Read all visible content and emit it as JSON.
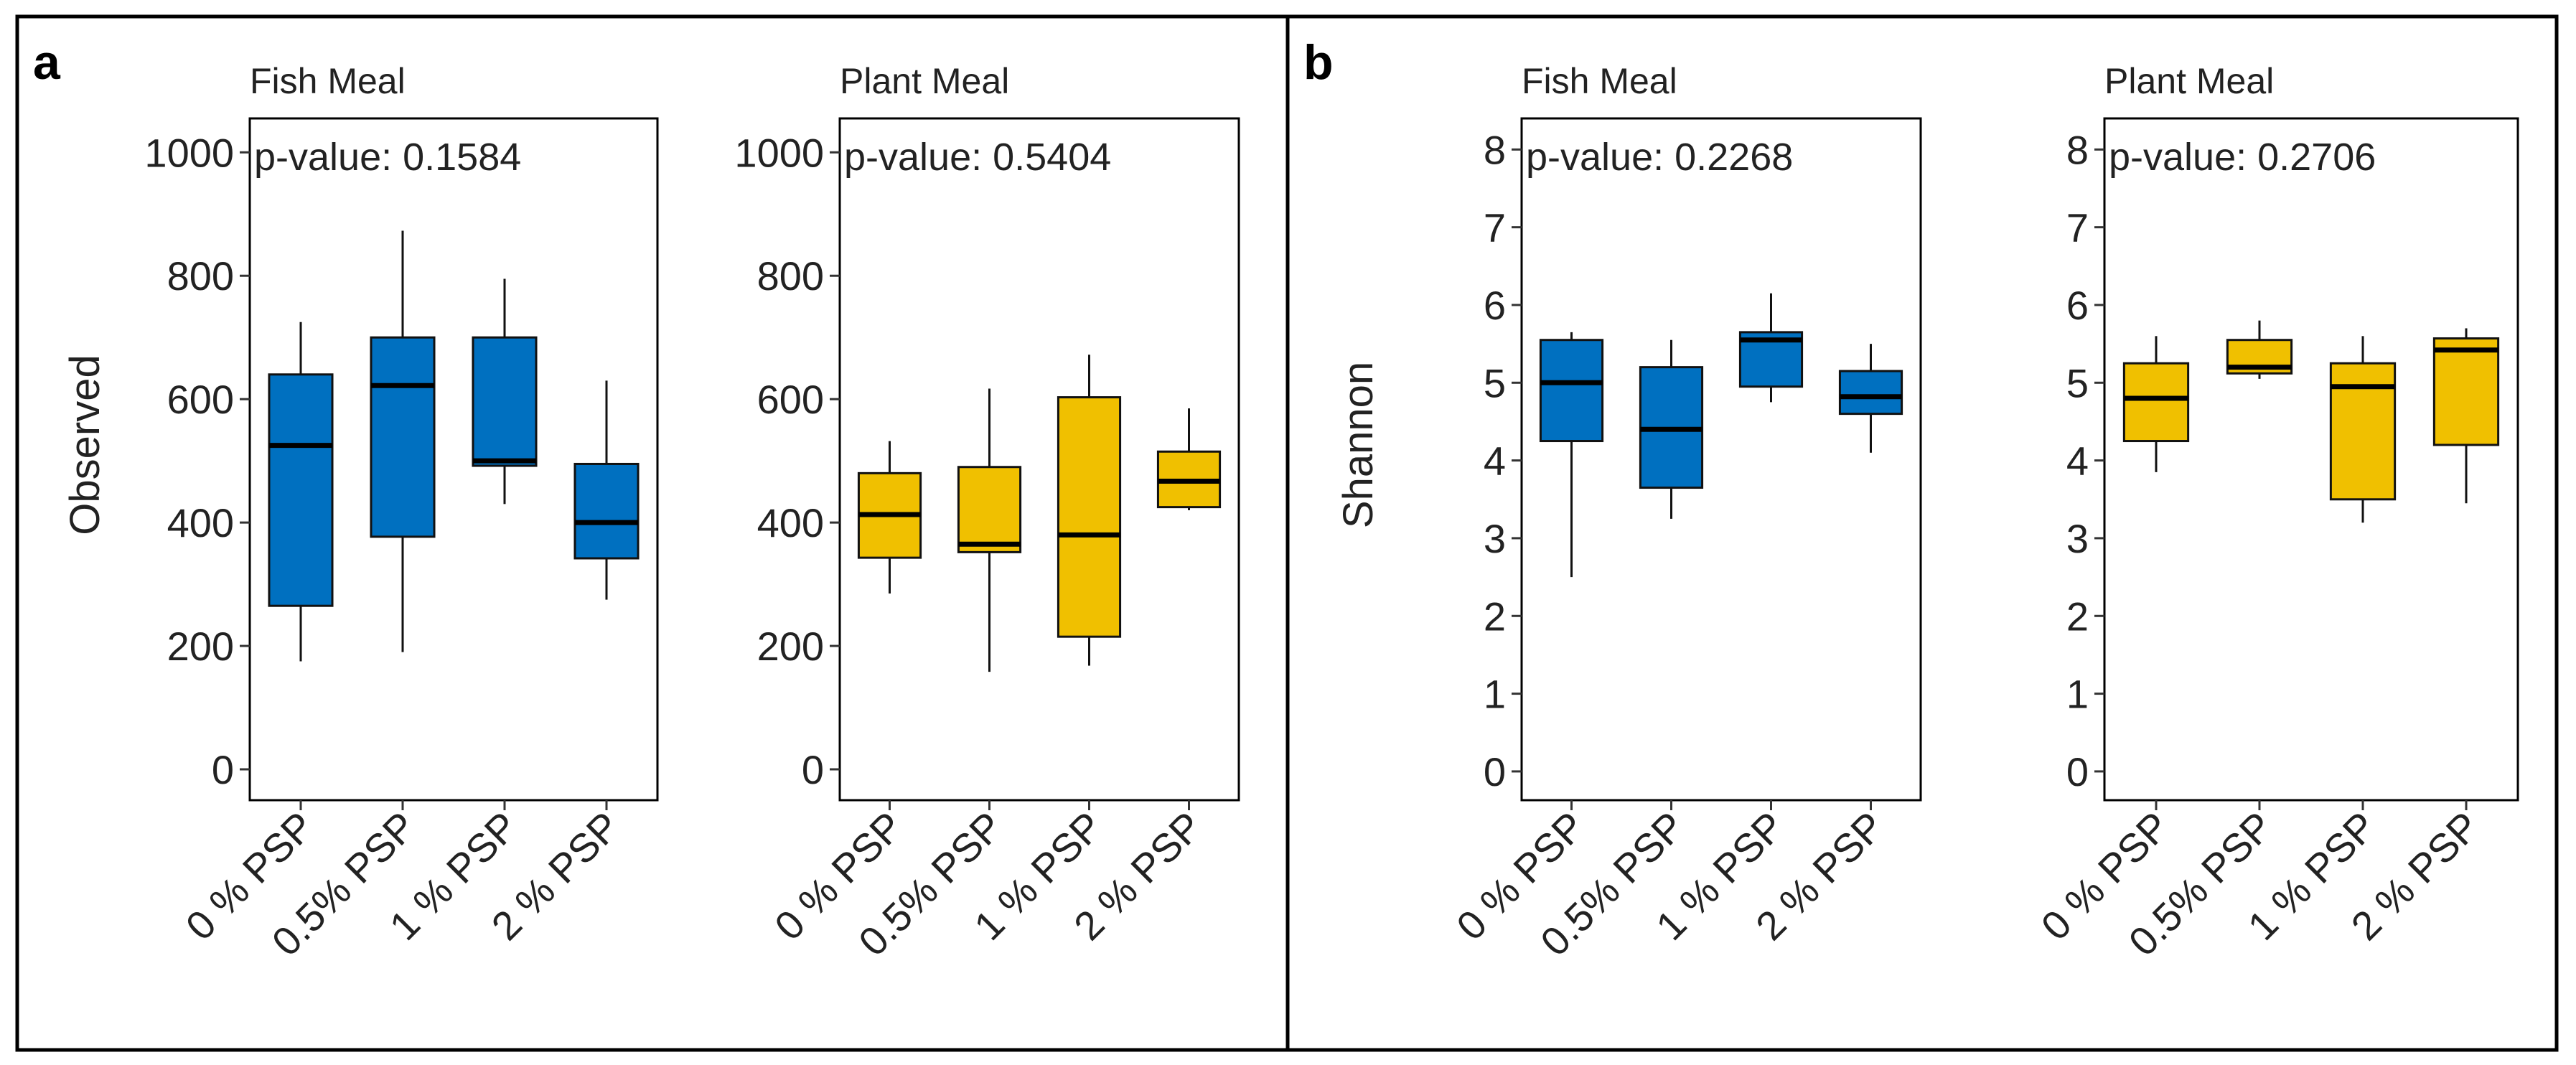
{
  "figure": {
    "panels": [
      {
        "letter": "a",
        "ylabel": "Observed"
      },
      {
        "letter": "b",
        "ylabel": "Shannon"
      }
    ]
  },
  "colors": {
    "fish": "#0070c0",
    "plant": "#f0c000",
    "stroke": "#111111"
  },
  "chart_data": [
    {
      "type": "box",
      "panel": "a",
      "title": "Fish Meal",
      "annotation": "p-value: 0.1584",
      "ylabel": "Observed",
      "ylim": [
        -50,
        1055
      ],
      "yticks": [
        0,
        200,
        400,
        600,
        800,
        1000
      ],
      "categories": [
        "0 % PSP",
        "0.5% PSP",
        "1 % PSP",
        "2 % PSP"
      ],
      "fill": "fish",
      "boxes": [
        {
          "min": 175,
          "q1": 265,
          "median": 525,
          "q3": 640,
          "max": 725
        },
        {
          "min": 190,
          "q1": 377,
          "median": 622,
          "q3": 700,
          "max": 873
        },
        {
          "min": 430,
          "q1": 492,
          "median": 500,
          "q3": 700,
          "max": 795
        },
        {
          "min": 275,
          "q1": 342,
          "median": 400,
          "q3": 495,
          "max": 630
        }
      ]
    },
    {
      "type": "box",
      "panel": "a",
      "title": "Plant Meal",
      "annotation": "p-value: 0.5404",
      "ylabel": "",
      "ylim": [
        -50,
        1055
      ],
      "yticks": [
        0,
        200,
        400,
        600,
        800,
        1000
      ],
      "categories": [
        "0 % PSP",
        "0.5% PSP",
        "1 % PSP",
        "2 % PSP"
      ],
      "fill": "plant",
      "boxes": [
        {
          "min": 285,
          "q1": 343,
          "median": 413,
          "q3": 480,
          "max": 532
        },
        {
          "min": 158,
          "q1": 352,
          "median": 365,
          "q3": 490,
          "max": 617
        },
        {
          "min": 168,
          "q1": 215,
          "median": 380,
          "q3": 603,
          "max": 672
        },
        {
          "min": 420,
          "q1": 425,
          "median": 467,
          "q3": 515,
          "max": 585
        }
      ]
    },
    {
      "type": "box",
      "panel": "b",
      "title": "Fish Meal",
      "annotation": "p-value: 0.2268",
      "ylabel": "Shannon",
      "ylim": [
        -0.37,
        8.4
      ],
      "yticks": [
        0,
        1,
        2,
        3,
        4,
        5,
        6,
        7,
        8
      ],
      "categories": [
        "0 % PSP",
        "0.5% PSP",
        "1 % PSP",
        "2 % PSP"
      ],
      "fill": "fish",
      "boxes": [
        {
          "min": 2.5,
          "q1": 4.25,
          "median": 5.0,
          "q3": 5.55,
          "max": 5.65
        },
        {
          "min": 3.25,
          "q1": 3.65,
          "median": 4.4,
          "q3": 5.2,
          "max": 5.55
        },
        {
          "min": 4.75,
          "q1": 4.95,
          "median": 5.55,
          "q3": 5.65,
          "max": 6.15
        },
        {
          "min": 4.1,
          "q1": 4.6,
          "median": 4.82,
          "q3": 5.15,
          "max": 5.5
        }
      ]
    },
    {
      "type": "box",
      "panel": "b",
      "title": "Plant Meal",
      "annotation": "p-value: 0.2706",
      "ylabel": "",
      "ylim": [
        -0.37,
        8.4
      ],
      "yticks": [
        0,
        1,
        2,
        3,
        4,
        5,
        6,
        7,
        8
      ],
      "categories": [
        "0 % PSP",
        "0.5% PSP",
        "1 % PSP",
        "2 % PSP"
      ],
      "fill": "plant",
      "boxes": [
        {
          "min": 3.85,
          "q1": 4.25,
          "median": 4.8,
          "q3": 5.25,
          "max": 5.6
        },
        {
          "min": 5.05,
          "q1": 5.12,
          "median": 5.2,
          "q3": 5.55,
          "max": 5.8
        },
        {
          "min": 3.2,
          "q1": 3.5,
          "median": 4.95,
          "q3": 5.25,
          "max": 5.6
        },
        {
          "min": 3.45,
          "q1": 4.2,
          "median": 5.42,
          "q3": 5.57,
          "max": 5.7
        }
      ]
    }
  ]
}
